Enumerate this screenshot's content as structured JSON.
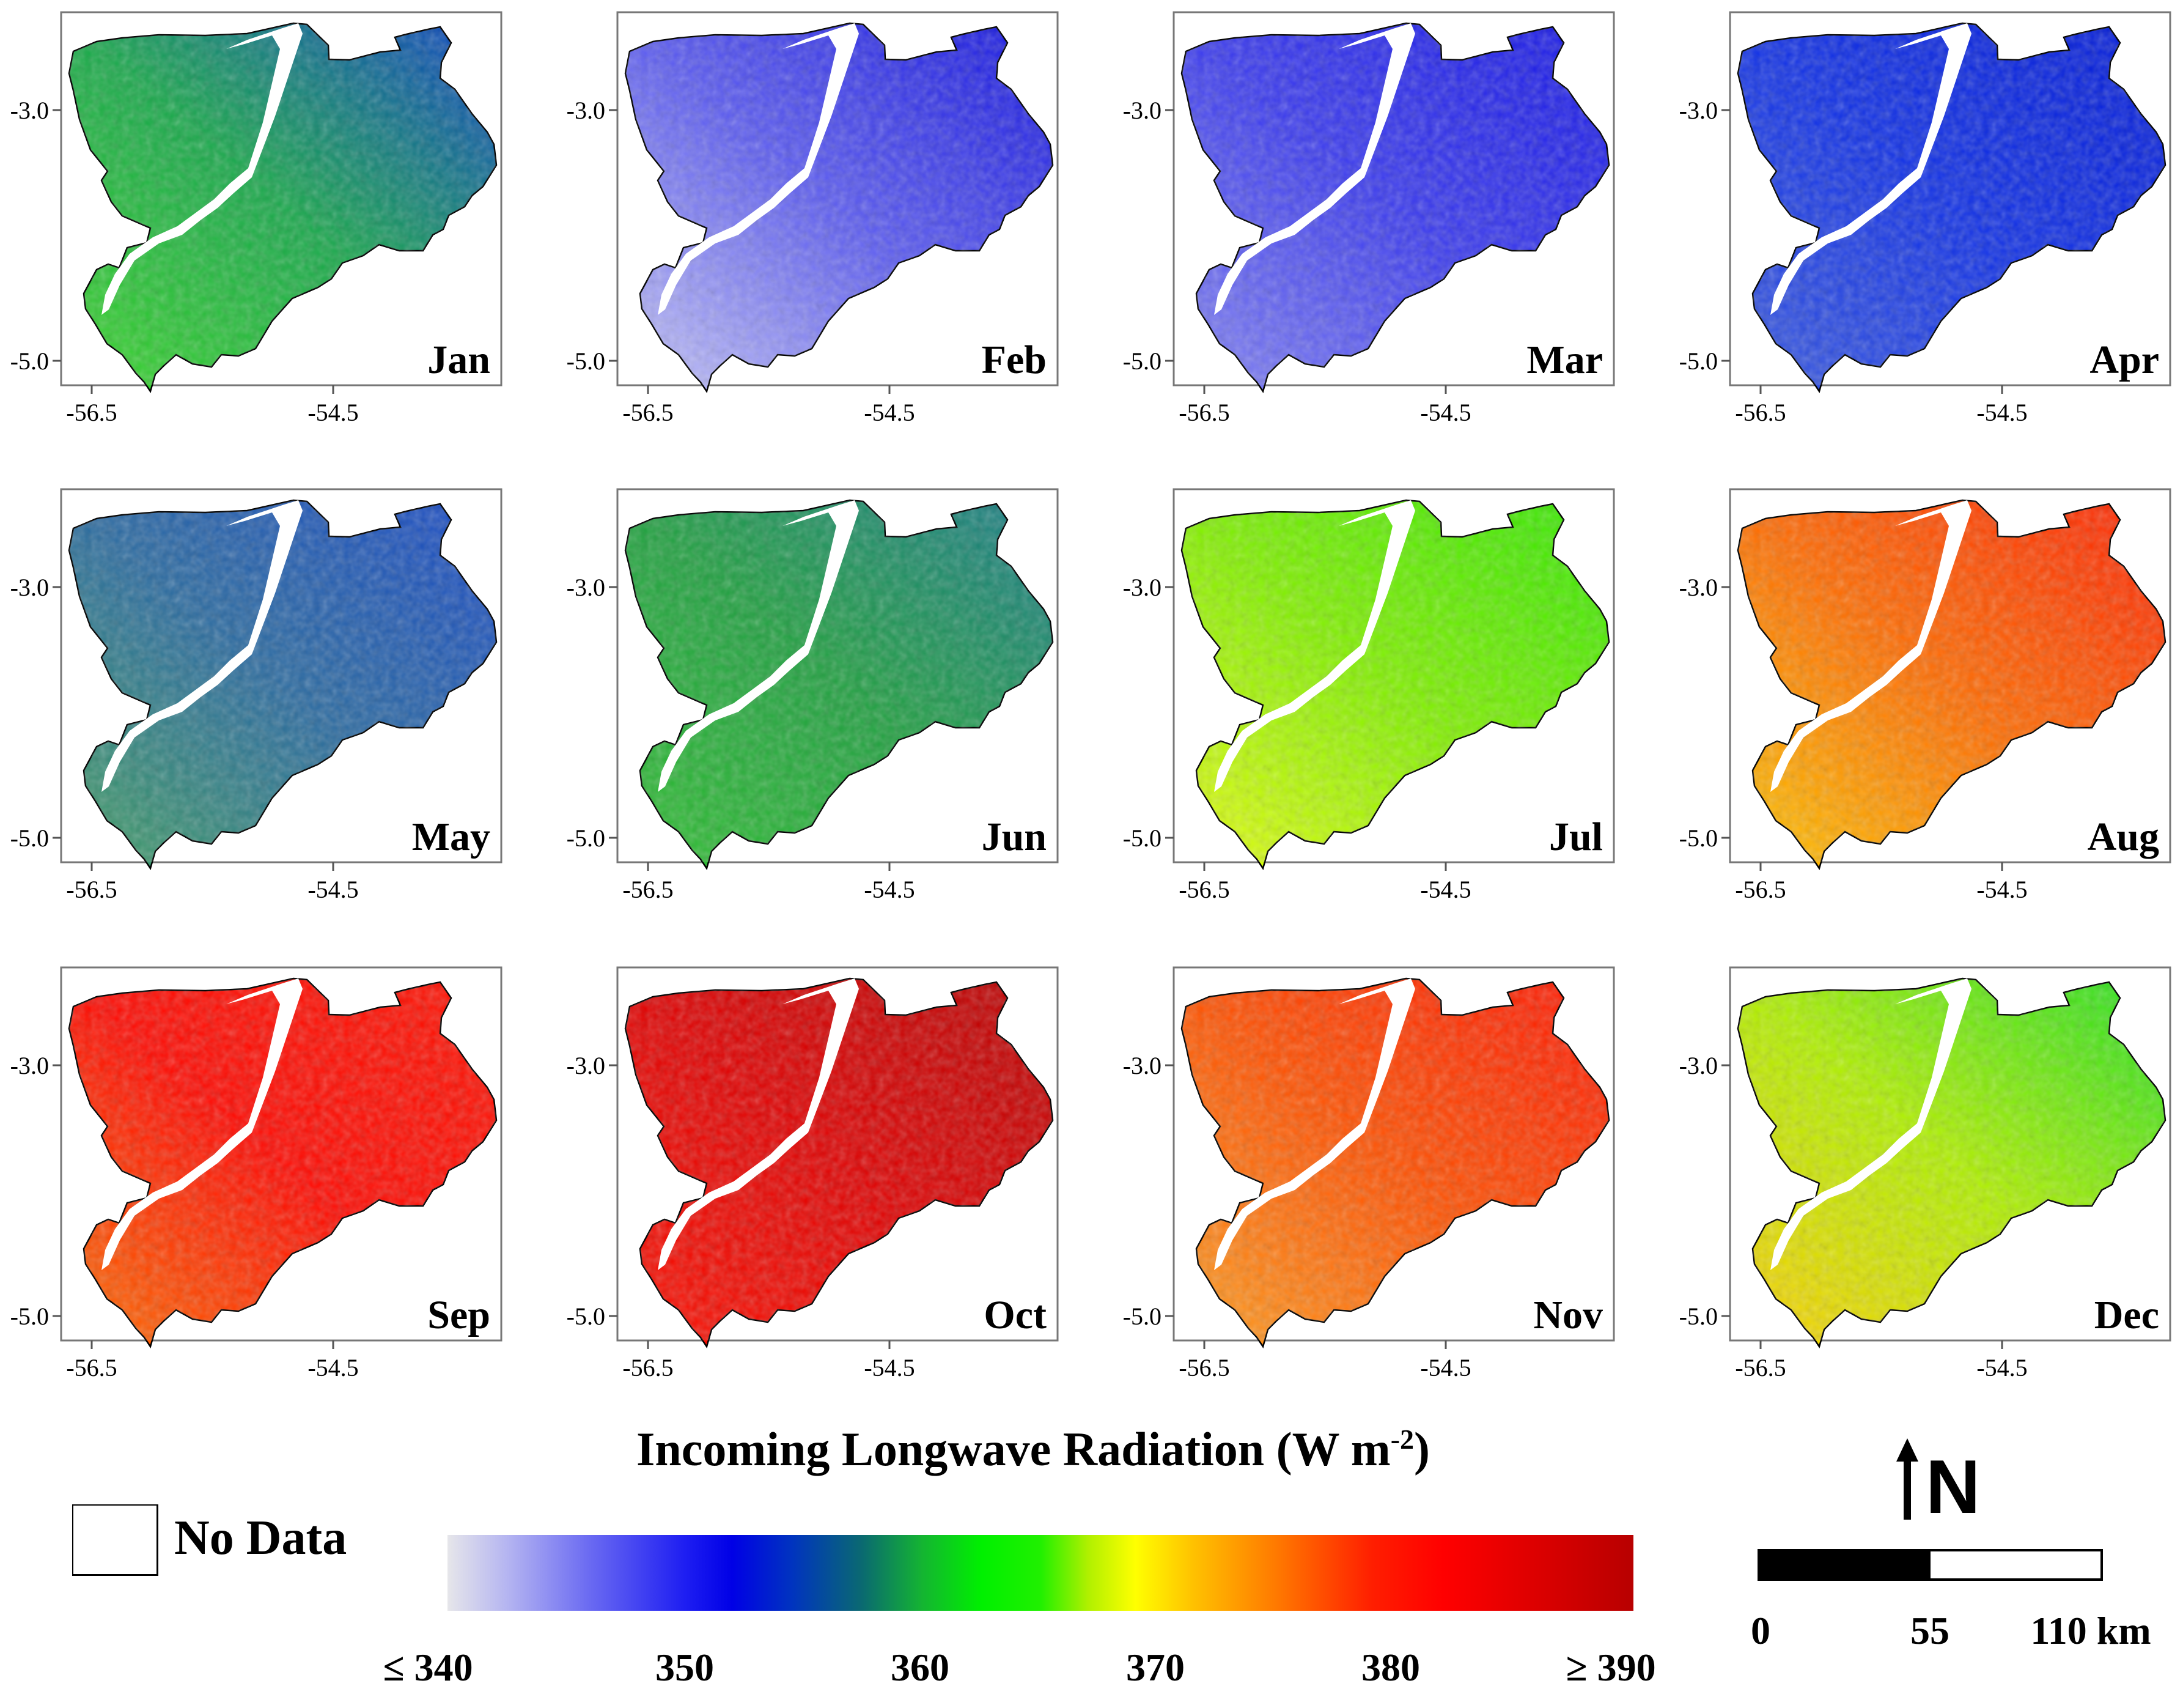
{
  "panels": [
    {
      "label": "Jan",
      "lat_ticks": [
        "-3.0",
        "-5.0"
      ],
      "lon_ticks": [
        "-56.5",
        "-54.5"
      ],
      "palette": [
        "#0a3ec8",
        "#18a84a",
        "#3ad828"
      ]
    },
    {
      "label": "Feb",
      "lat_ticks": [
        "-3.0",
        "-5.0"
      ],
      "lon_ticks": [
        "-56.5",
        "-54.5"
      ],
      "palette": [
        "#1010e0",
        "#5a5af0",
        "#c8c8f8"
      ]
    },
    {
      "label": "Mar",
      "lat_ticks": [
        "-3.0",
        "-5.0"
      ],
      "lon_ticks": [
        "-56.5",
        "-54.5"
      ],
      "palette": [
        "#1414e6",
        "#3a3aee",
        "#8686f4"
      ]
    },
    {
      "label": "Apr",
      "lat_ticks": [
        "-3.0",
        "-5.0"
      ],
      "lon_ticks": [
        "-56.5",
        "-54.5"
      ],
      "palette": [
        "#0018d8",
        "#1030e6",
        "#3a5ae0"
      ]
    },
    {
      "label": "May",
      "lat_ticks": [
        "-3.0",
        "-5.0"
      ],
      "lon_ticks": [
        "-56.5",
        "-54.5"
      ],
      "palette": [
        "#1848c8",
        "#2a6aa0",
        "#40a060"
      ]
    },
    {
      "label": "Jun",
      "lat_ticks": [
        "-3.0",
        "-5.0"
      ],
      "lon_ticks": [
        "-56.5",
        "-54.5"
      ],
      "palette": [
        "#1a7a8a",
        "#20a040",
        "#30c030"
      ]
    },
    {
      "label": "Jul",
      "lat_ticks": [
        "-3.0",
        "-5.0"
      ],
      "lon_ticks": [
        "-56.5",
        "-54.5"
      ],
      "palette": [
        "#30e800",
        "#80f000",
        "#e8ff10"
      ]
    },
    {
      "label": "Aug",
      "lat_ticks": [
        "-3.0",
        "-5.0"
      ],
      "lon_ticks": [
        "-56.5",
        "-54.5"
      ],
      "palette": [
        "#ff2000",
        "#ff6a00",
        "#ffc800"
      ]
    },
    {
      "label": "Sep",
      "lat_ticks": [
        "-3.0",
        "-5.0"
      ],
      "lon_ticks": [
        "-56.5",
        "-54.5"
      ],
      "palette": [
        "#ff1000",
        "#ff0800",
        "#ff7000"
      ]
    },
    {
      "label": "Oct",
      "lat_ticks": [
        "-3.0",
        "-5.0"
      ],
      "lon_ticks": [
        "-56.5",
        "-54.5"
      ],
      "palette": [
        "#b80000",
        "#e00000",
        "#ff1000"
      ]
    },
    {
      "label": "Nov",
      "lat_ticks": [
        "-3.0",
        "-5.0"
      ],
      "lon_ticks": [
        "-56.5",
        "-54.5"
      ],
      "palette": [
        "#ff1400",
        "#ff5000",
        "#ffa020"
      ]
    },
    {
      "label": "Dec",
      "lat_ticks": [
        "-3.0",
        "-5.0"
      ],
      "lon_ticks": [
        "-56.5",
        "-54.5"
      ],
      "palette": [
        "#20e020",
        "#b0f000",
        "#ffd000"
      ]
    }
  ],
  "legend": {
    "title": "Incoming Longwave Radiation (W m",
    "title_sup": "-2",
    "title_end": ")",
    "nodata_label": "No Data",
    "ticks": [
      "≤ 340",
      "350",
      "360",
      "370",
      "380",
      "≥ 390"
    ]
  },
  "north_label": "N",
  "scale_labels": [
    "0",
    "55",
    "110 km"
  ]
}
